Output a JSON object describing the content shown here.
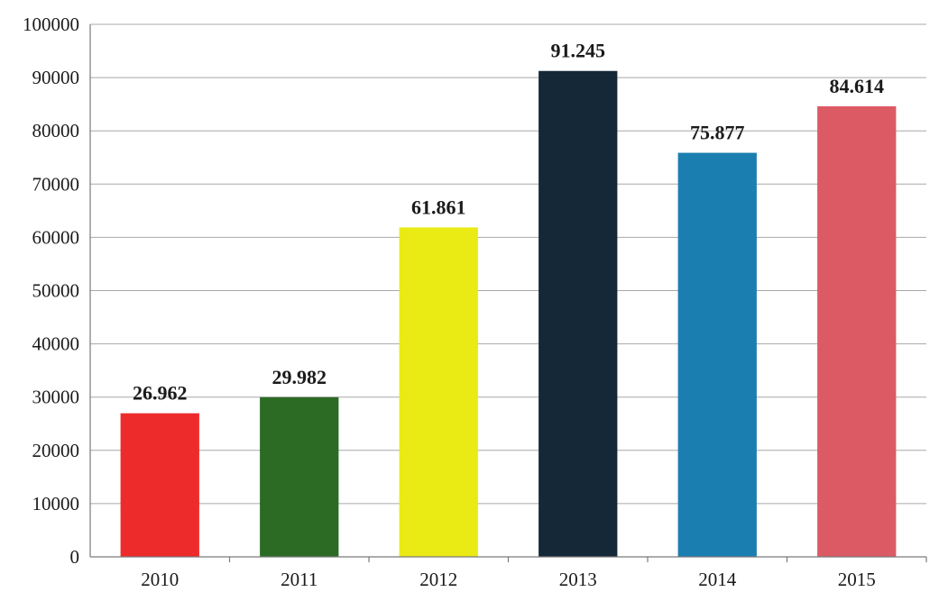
{
  "chart_data": {
    "type": "bar",
    "categories": [
      "2010",
      "2011",
      "2012",
      "2013",
      "2014",
      "2015"
    ],
    "values": [
      26962,
      29982,
      61861,
      91245,
      75877,
      84614
    ],
    "data_labels": [
      "26.962",
      "29.982",
      "61.861",
      "91.245",
      "75.877",
      "84.614"
    ],
    "bar_colors": [
      "#ee2b2b",
      "#2b6b24",
      "#eaea14",
      "#142838",
      "#1a7fb0",
      "#dc5a64"
    ],
    "y_ticks": [
      "0",
      "10000",
      "20000",
      "30000",
      "40000",
      "50000",
      "60000",
      "70000",
      "80000",
      "90000",
      "100000"
    ],
    "ylim": [
      0,
      100000
    ],
    "grid": true,
    "legend": "none",
    "title": "",
    "xlabel": "",
    "ylabel": ""
  }
}
